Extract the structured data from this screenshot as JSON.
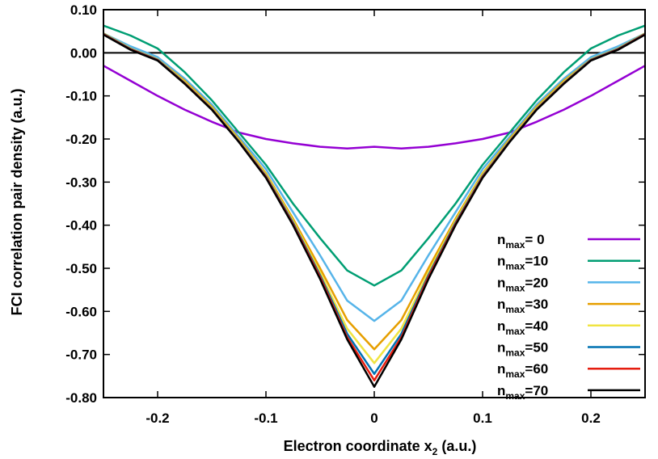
{
  "chart_data": {
    "type": "line",
    "title": "",
    "xlabel": "Electron coordinate  x",
    "xlabel_sub": "2",
    "xlabel_unit": " (a.u.)",
    "ylabel": "FCI correlation pair density (a.u.)",
    "xlim": [
      -0.25,
      0.25
    ],
    "ylim": [
      -0.8,
      0.1
    ],
    "xticks": [
      -0.2,
      -0.1,
      0,
      0.1,
      0.2
    ],
    "xtick_labels": [
      "-0.2",
      "-0.1",
      "0",
      "0.1",
      "0.2"
    ],
    "yticks": [
      0.1,
      0.0,
      -0.1,
      -0.2,
      -0.3,
      -0.4,
      -0.5,
      -0.6,
      -0.7,
      -0.8
    ],
    "ytick_labels": [
      "0.10",
      "0.00",
      "-0.10",
      "-0.20",
      "-0.30",
      "-0.40",
      "-0.50",
      "-0.60",
      "-0.70",
      "-0.80"
    ],
    "hline": 0,
    "grid": false,
    "legend_position": "bottom-right",
    "x": [
      -0.25,
      -0.225,
      -0.2,
      -0.175,
      -0.15,
      -0.125,
      -0.1,
      -0.075,
      -0.05,
      -0.025,
      0,
      0.025,
      0.05,
      0.075,
      0.1,
      0.125,
      0.15,
      0.175,
      0.2,
      0.225,
      0.25
    ],
    "series": [
      {
        "label_main": "n",
        "label_sub": "max",
        "label_tail": "= 0",
        "color": "#9400d3",
        "values": [
          -0.03,
          -0.065,
          -0.1,
          -0.132,
          -0.16,
          -0.185,
          -0.2,
          -0.21,
          -0.218,
          -0.222,
          -0.218,
          -0.222,
          -0.218,
          -0.21,
          -0.2,
          -0.185,
          -0.16,
          -0.132,
          -0.1,
          -0.065,
          -0.03
        ]
      },
      {
        "label_main": "n",
        "label_sub": "max",
        "label_tail": "=10",
        "color": "#009e73",
        "values": [
          0.063,
          0.04,
          0.01,
          -0.045,
          -0.11,
          -0.185,
          -0.26,
          -0.35,
          -0.43,
          -0.505,
          -0.54,
          -0.505,
          -0.43,
          -0.35,
          -0.26,
          -0.185,
          -0.11,
          -0.045,
          0.01,
          0.04,
          0.063
        ]
      },
      {
        "label_main": "n",
        "label_sub": "max",
        "label_tail": "=20",
        "color": "#56b4e9",
        "values": [
          0.045,
          0.015,
          -0.01,
          -0.06,
          -0.12,
          -0.195,
          -0.27,
          -0.37,
          -0.47,
          -0.575,
          -0.622,
          -0.575,
          -0.47,
          -0.37,
          -0.27,
          -0.195,
          -0.12,
          -0.06,
          -0.01,
          0.015,
          0.045
        ]
      },
      {
        "label_main": "n",
        "label_sub": "max",
        "label_tail": "=30",
        "color": "#e69f00",
        "values": [
          0.045,
          0.01,
          -0.015,
          -0.065,
          -0.125,
          -0.2,
          -0.28,
          -0.385,
          -0.5,
          -0.62,
          -0.688,
          -0.62,
          -0.5,
          -0.385,
          -0.28,
          -0.2,
          -0.125,
          -0.065,
          -0.015,
          0.01,
          0.045
        ]
      },
      {
        "label_main": "n",
        "label_sub": "max",
        "label_tail": "=40",
        "color": "#f0e442",
        "values": [
          0.045,
          0.01,
          -0.015,
          -0.068,
          -0.128,
          -0.203,
          -0.283,
          -0.39,
          -0.51,
          -0.64,
          -0.72,
          -0.64,
          -0.51,
          -0.39,
          -0.283,
          -0.203,
          -0.128,
          -0.068,
          -0.015,
          0.01,
          0.045
        ]
      },
      {
        "label_main": "n",
        "label_sub": "max",
        "label_tail": "=50",
        "color": "#0072b2",
        "values": [
          0.044,
          0.009,
          -0.016,
          -0.07,
          -0.13,
          -0.205,
          -0.286,
          -0.394,
          -0.516,
          -0.652,
          -0.745,
          -0.652,
          -0.516,
          -0.394,
          -0.286,
          -0.205,
          -0.13,
          -0.07,
          -0.016,
          0.009,
          0.044
        ]
      },
      {
        "label_main": "n",
        "label_sub": "max",
        "label_tail": "=60",
        "color": "#e51e10",
        "values": [
          0.043,
          0.008,
          -0.017,
          -0.071,
          -0.131,
          -0.206,
          -0.288,
          -0.397,
          -0.52,
          -0.66,
          -0.76,
          -0.66,
          -0.52,
          -0.397,
          -0.288,
          -0.206,
          -0.131,
          -0.071,
          -0.017,
          0.008,
          0.043
        ]
      },
      {
        "label_main": "n",
        "label_sub": "max",
        "label_tail": "=70",
        "color": "#000000",
        "values": [
          0.042,
          0.007,
          -0.018,
          -0.072,
          -0.132,
          -0.207,
          -0.29,
          -0.4,
          -0.525,
          -0.665,
          -0.775,
          -0.665,
          -0.525,
          -0.4,
          -0.29,
          -0.207,
          -0.132,
          -0.072,
          -0.018,
          0.007,
          0.042
        ]
      }
    ]
  }
}
